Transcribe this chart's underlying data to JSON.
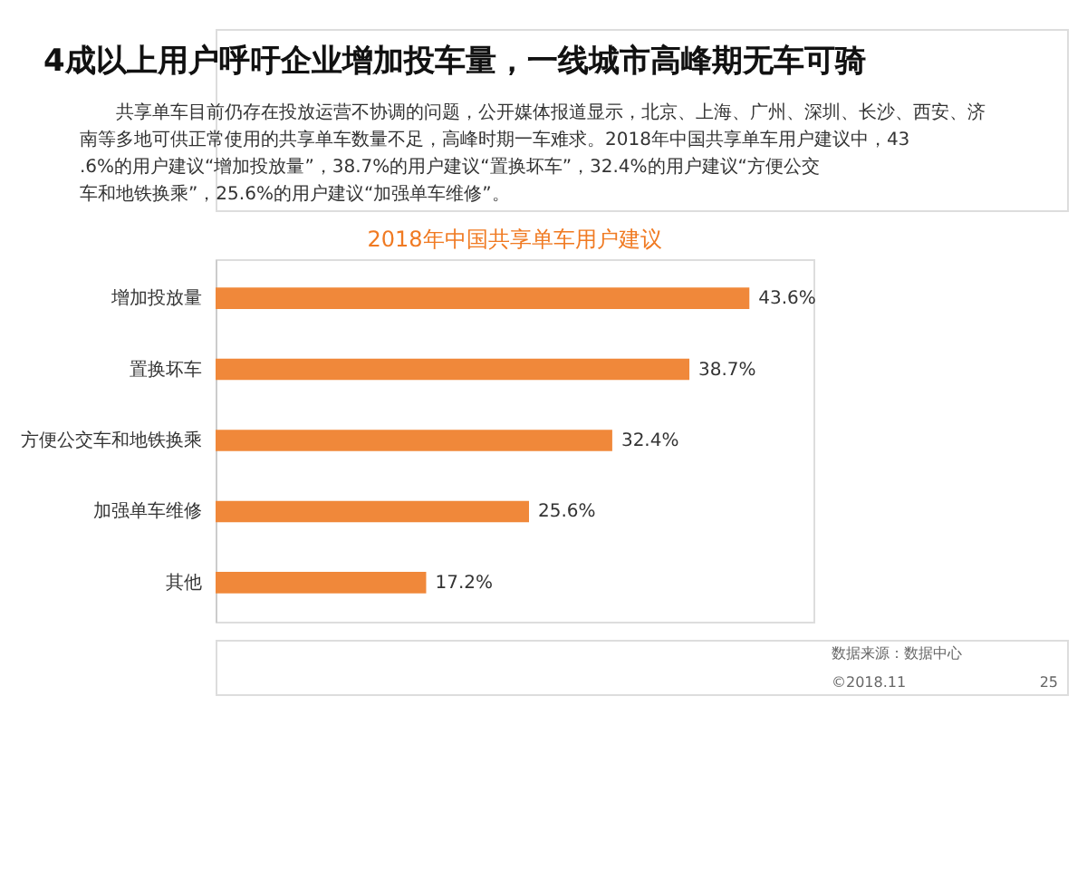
{
  "chart_data": {
    "type": "bar",
    "orientation": "horizontal",
    "title": "2018年中国共享单车用户建议",
    "categories": [
      "增加投放量",
      "置换坏车",
      "方便公交车和地铁换乘",
      "加强单车维修",
      "其他"
    ],
    "values": [
      43.6,
      38.7,
      32.4,
      25.6,
      17.2
    ],
    "value_labels": [
      "43.6%",
      "38.7%",
      "32.4%",
      "25.6%",
      "17.2%"
    ],
    "color": "#f0883a",
    "annotations": [
      "4成以上用户呼吁企业增加投车量，一线城市高峰期无车可骑",
      "共享单车目前仍存在投放运营不协调的问题，公开媒体报道显示，北京、上海、广州、深圳、长沙、西安、济南等多地可供正常使用的共享单车数量不足，高峰时期一车难求。2018年中国共享单车用户建议中，43.6%的用户建议“增加投放量”，38.7%的用户建议“置换坏车”，32.4%的用户建议“方便公交车和地铁换乘”，25.6%的用户建议“加强单车维修”。",
      "数据来源：数据中心",
      "©2018.11",
      "25"
    ]
  }
}
